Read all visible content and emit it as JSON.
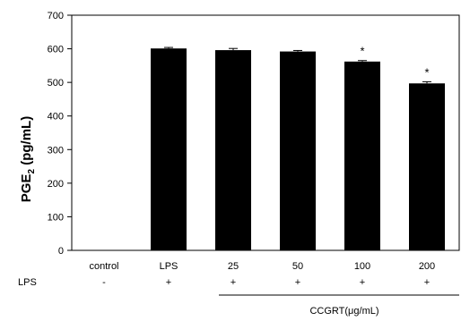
{
  "chart_data": {
    "type": "bar",
    "categories": [
      "control",
      "LPS",
      "25",
      "50",
      "100",
      "200"
    ],
    "values": [
      0,
      601,
      596,
      592,
      562,
      497
    ],
    "errors": [
      0,
      3,
      5,
      3,
      3,
      5
    ],
    "annotations": [
      "",
      "",
      "",
      "",
      "*",
      "*"
    ],
    "lps_row": [
      "-",
      "+",
      "+",
      "+",
      "+",
      "+"
    ],
    "lps_row_label": "LPS",
    "ylabel": "PGE",
    "ylabel_subscript": "2",
    "ylabel_unit": " (pg/mL)",
    "group_label": "CCGRT(μg/mL)",
    "ylim": [
      0,
      700
    ],
    "yticks": [
      0,
      100,
      200,
      300,
      400,
      500,
      600,
      700
    ],
    "bar_color": "#000000",
    "grid": false
  }
}
